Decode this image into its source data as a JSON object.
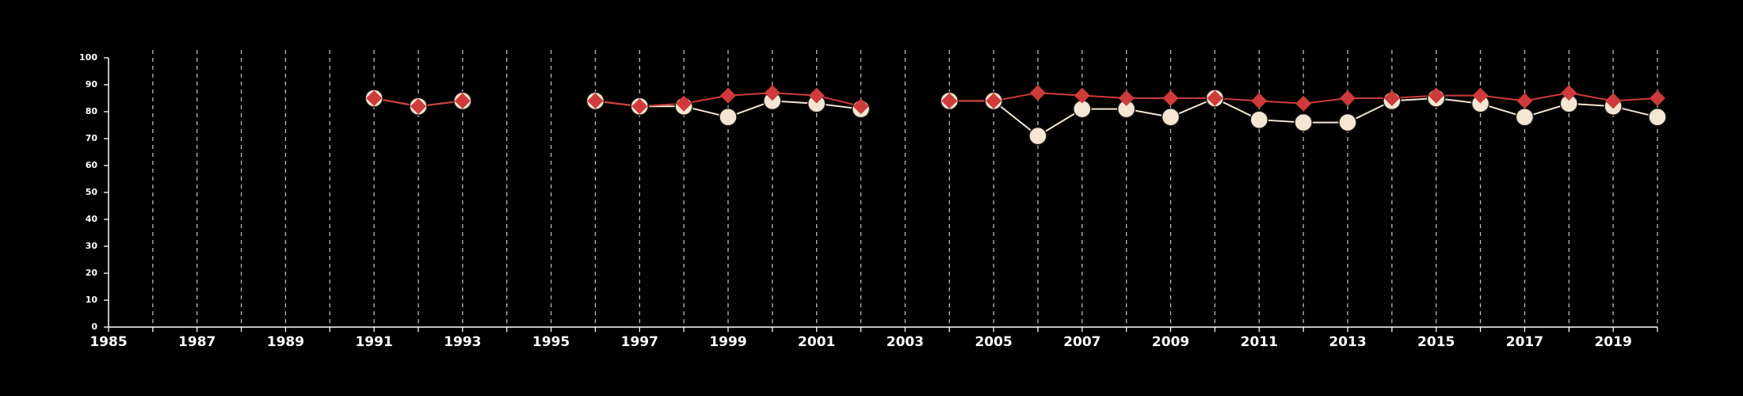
{
  "chart_data": {
    "type": "line",
    "title": "",
    "xlabel": "",
    "ylabel": "",
    "xlim": [
      1985,
      2020
    ],
    "ylim": [
      0,
      100
    ],
    "x_ticks": [
      1985,
      1987,
      1989,
      1991,
      1993,
      1995,
      1997,
      1999,
      2001,
      2003,
      2005,
      2007,
      2009,
      2011,
      2013,
      2015,
      2017,
      2019
    ],
    "y_ticks": [
      0,
      10,
      20,
      30,
      40,
      50,
      60,
      70,
      80,
      90,
      100
    ],
    "grid": {
      "vertical": true,
      "horizontal": false,
      "style": "dashed"
    },
    "background": "#000000",
    "series": [
      {
        "color": "#f5e6d3",
        "marker": "circle",
        "points": [
          [
            1991,
            85
          ],
          [
            1992,
            82
          ],
          [
            1993,
            84
          ],
          [
            1996,
            84
          ],
          [
            1997,
            82
          ],
          [
            1998,
            82
          ],
          [
            1999,
            78
          ],
          [
            2000,
            84
          ],
          [
            2001,
            83
          ],
          [
            2002,
            81
          ],
          [
            2004,
            84
          ],
          [
            2005,
            84
          ],
          [
            2006,
            71
          ],
          [
            2007,
            81
          ],
          [
            2008,
            81
          ],
          [
            2009,
            78
          ],
          [
            2010,
            85
          ],
          [
            2011,
            77
          ],
          [
            2012,
            76
          ],
          [
            2013,
            76
          ],
          [
            2014,
            84
          ],
          [
            2015,
            85
          ],
          [
            2016,
            83
          ],
          [
            2017,
            78
          ],
          [
            2018,
            83
          ],
          [
            2019,
            82
          ],
          [
            2020,
            78
          ]
        ]
      },
      {
        "color": "#d03a3a",
        "marker": "diamond",
        "points": [
          [
            1991,
            85
          ],
          [
            1992,
            82
          ],
          [
            1993,
            84
          ],
          [
            1996,
            84
          ],
          [
            1997,
            82
          ],
          [
            1998,
            83
          ],
          [
            1999,
            86
          ],
          [
            2000,
            87
          ],
          [
            2001,
            86
          ],
          [
            2002,
            82
          ],
          [
            2004,
            84
          ],
          [
            2005,
            84
          ],
          [
            2006,
            87
          ],
          [
            2007,
            86
          ],
          [
            2008,
            85
          ],
          [
            2009,
            85
          ],
          [
            2010,
            85
          ],
          [
            2011,
            84
          ],
          [
            2012,
            83
          ],
          [
            2013,
            85
          ],
          [
            2014,
            85
          ],
          [
            2015,
            86
          ],
          [
            2016,
            86
          ],
          [
            2017,
            84
          ],
          [
            2018,
            87
          ],
          [
            2019,
            84
          ],
          [
            2020,
            85
          ]
        ]
      }
    ]
  }
}
